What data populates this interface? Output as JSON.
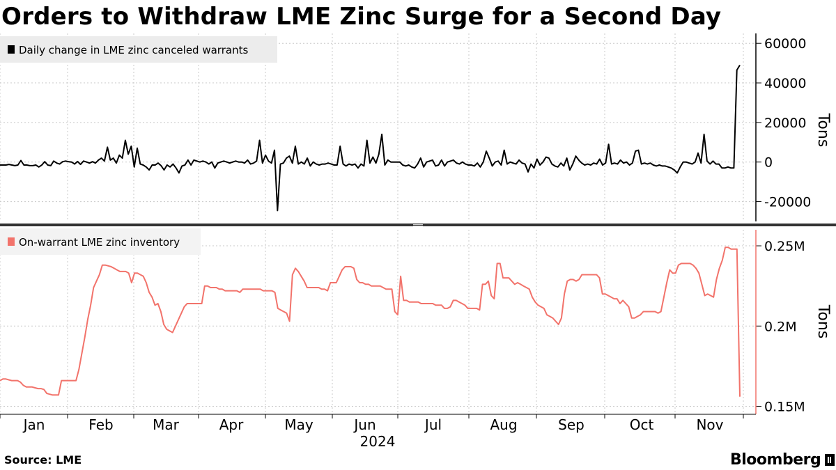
{
  "title": "Orders to Withdraw LME Zinc Surge for a Second Day",
  "source": "Source: LME",
  "brand": "Bloomberg",
  "colors": {
    "top_series": "#000000",
    "bottom_series": "#f2736b"
  },
  "chart_data": [
    {
      "type": "line",
      "legend": "Daily change in LME zinc canceled warrants",
      "ylabel": "Tons",
      "ylim": [
        -30000,
        65000
      ],
      "yticks": [
        60000,
        40000,
        20000,
        0,
        -20000
      ],
      "ytick_labels": [
        "60000",
        "40000",
        "20000",
        "0",
        "-20000"
      ],
      "grid": true,
      "legend_position": "top-left",
      "series": [
        {
          "values": [
            -1500,
            -1500,
            -1500,
            -1200,
            -1500,
            -1800,
            -1500,
            800,
            -1500,
            -1500,
            -1800,
            -1800,
            -1500,
            -2500,
            -1500,
            200,
            -1500,
            -1800,
            500,
            -500,
            -1000,
            200,
            500,
            200,
            0,
            -1000,
            300,
            -1200,
            500,
            0,
            -500,
            200,
            -500,
            1000,
            2000,
            500,
            7500,
            1000,
            2000,
            -500,
            3500,
            2000,
            11000,
            4000,
            8000,
            -2500,
            7000,
            -1000,
            -1500,
            -2500,
            -4000,
            -1500,
            -1500,
            -500,
            -1800,
            -4000,
            -1500,
            -2500,
            -1000,
            -3000,
            -5500,
            -2000,
            -1500,
            1000,
            -1500,
            1000,
            500,
            0,
            500,
            0,
            -1000,
            0,
            -3000,
            -500,
            0,
            500,
            0,
            -500,
            0,
            500,
            0,
            0,
            -500,
            1000,
            -1000,
            -500,
            500,
            11000,
            -500,
            3500,
            500,
            -500,
            6000,
            -24500,
            -1000,
            -500,
            2000,
            3000,
            -500,
            8000,
            -1000,
            0,
            -1000,
            2000,
            -2000,
            0,
            -1000,
            -1500,
            -1000,
            -1000,
            -500,
            -1000,
            -1500,
            -1500,
            8000,
            -1000,
            -2000,
            -1000,
            -1500,
            -1000,
            -3000,
            -1000,
            -2000,
            11000,
            -500,
            2500,
            -500,
            4000,
            14000,
            -1500,
            1000,
            0,
            0,
            0,
            0,
            -1500,
            -2000,
            -1500,
            -2500,
            -3000,
            -1000,
            2000,
            -2500,
            0,
            500,
            1000,
            -2000,
            -1500,
            1000,
            -2000,
            0,
            500,
            1000,
            -500,
            -1000,
            0,
            -1000,
            -1500,
            -1500,
            -2000,
            -500,
            -2500,
            0,
            5500,
            2000,
            -2000,
            0,
            500,
            -1500,
            6000,
            -1000,
            0,
            -500,
            -1000,
            1000,
            -500,
            -1000,
            -5000,
            -1000,
            -3000,
            1500,
            -1500,
            0,
            2500,
            2000,
            -1000,
            -2000,
            -2500,
            -500,
            -2000,
            2000,
            -4000,
            -1000,
            3000,
            1000,
            -500,
            -1500,
            -1000,
            -1500,
            -500,
            -1000,
            1500,
            -1500,
            -500,
            9000,
            -1000,
            -500,
            -1000,
            1000,
            -500,
            0,
            -1500,
            -500,
            5500,
            6000,
            -1000,
            -500,
            -1000,
            -500,
            -1500,
            -2000,
            -1500,
            -2000,
            -2000,
            -2500,
            -3000,
            -4000,
            -5500,
            -2500,
            0,
            0,
            -500,
            -1000,
            0,
            4500,
            -500,
            14000,
            500,
            -1000,
            500,
            -1000,
            -1000,
            -3000,
            -3000,
            -2500,
            -3000,
            -3000,
            46500,
            49000
          ]
        }
      ]
    },
    {
      "type": "line",
      "legend": "On-warrant LME zinc inventory",
      "ylabel": "Tons",
      "ylim": [
        145000,
        260000
      ],
      "yticks": [
        250000,
        200000,
        150000
      ],
      "ytick_labels": [
        "0.25M",
        "0.2M",
        "0.15M"
      ],
      "grid": true,
      "legend_position": "top-left",
      "x_ticks": [
        "Jan",
        "Feb",
        "Mar",
        "Apr",
        "May",
        "Jun",
        "Jul",
        "Aug",
        "Sep",
        "Oct",
        "Nov"
      ],
      "x_year": "2024",
      "series": [
        {
          "values": [
            166000,
            167000,
            167000,
            166500,
            166000,
            166000,
            166000,
            165000,
            163000,
            162000,
            162000,
            162000,
            161500,
            161000,
            161000,
            160500,
            158000,
            157500,
            157000,
            157000,
            157000,
            166000,
            166000,
            166000,
            166000,
            166000,
            166000,
            173000,
            183000,
            193000,
            204000,
            213000,
            224000,
            228000,
            232000,
            238000,
            238000,
            237500,
            237000,
            236000,
            235000,
            234000,
            234000,
            234000,
            233000,
            227000,
            233000,
            233000,
            232000,
            231000,
            227000,
            221000,
            218000,
            213000,
            214000,
            209000,
            201000,
            198000,
            197000,
            196000,
            200000,
            204000,
            208000,
            212000,
            214000,
            214000,
            214000,
            214000,
            214000,
            214000,
            225000,
            225000,
            224000,
            224000,
            224000,
            223000,
            223000,
            222000,
            222000,
            222000,
            222000,
            222000,
            221000,
            223000,
            223000,
            223000,
            223000,
            223000,
            223000,
            223000,
            222000,
            222000,
            222000,
            222000,
            221000,
            211000,
            210000,
            209000,
            208000,
            203000,
            232000,
            236000,
            234000,
            231000,
            228000,
            224000,
            224000,
            224000,
            224000,
            224000,
            223000,
            223000,
            222000,
            227000,
            227000,
            227000,
            231000,
            235000,
            237000,
            237000,
            237000,
            236000,
            229000,
            227000,
            227000,
            226000,
            226000,
            225000,
            225000,
            225000,
            225000,
            224000,
            223000,
            223000,
            223000,
            209000,
            207000,
            231000,
            216000,
            216000,
            215000,
            215000,
            215000,
            215000,
            214000,
            214000,
            214000,
            214000,
            214000,
            213000,
            213000,
            213000,
            211000,
            211000,
            212000,
            216000,
            216000,
            215000,
            214000,
            213000,
            211000,
            211000,
            211000,
            211000,
            210000,
            226000,
            226000,
            228000,
            219000,
            217000,
            239000,
            239000,
            230000,
            230000,
            230000,
            228000,
            226000,
            227000,
            226000,
            225000,
            224000,
            223000,
            218000,
            215000,
            213000,
            212000,
            211000,
            207000,
            206000,
            205000,
            203000,
            201000,
            205000,
            220000,
            228000,
            229000,
            229000,
            228000,
            229000,
            232000,
            232000,
            232000,
            232000,
            232000,
            232000,
            230000,
            220000,
            220000,
            219000,
            218000,
            217000,
            217000,
            214000,
            216000,
            214000,
            212000,
            205000,
            205000,
            206000,
            207000,
            209000,
            209000,
            209000,
            209000,
            209000,
            208000,
            209000,
            218000,
            227000,
            235000,
            233000,
            233000,
            238000,
            239000,
            239000,
            239000,
            239000,
            238000,
            236000,
            233000,
            226000,
            219000,
            220000,
            219000,
            218000,
            229000,
            236000,
            241000,
            249000,
            249000,
            248000,
            248000,
            248000,
            156000
          ]
        }
      ]
    }
  ]
}
